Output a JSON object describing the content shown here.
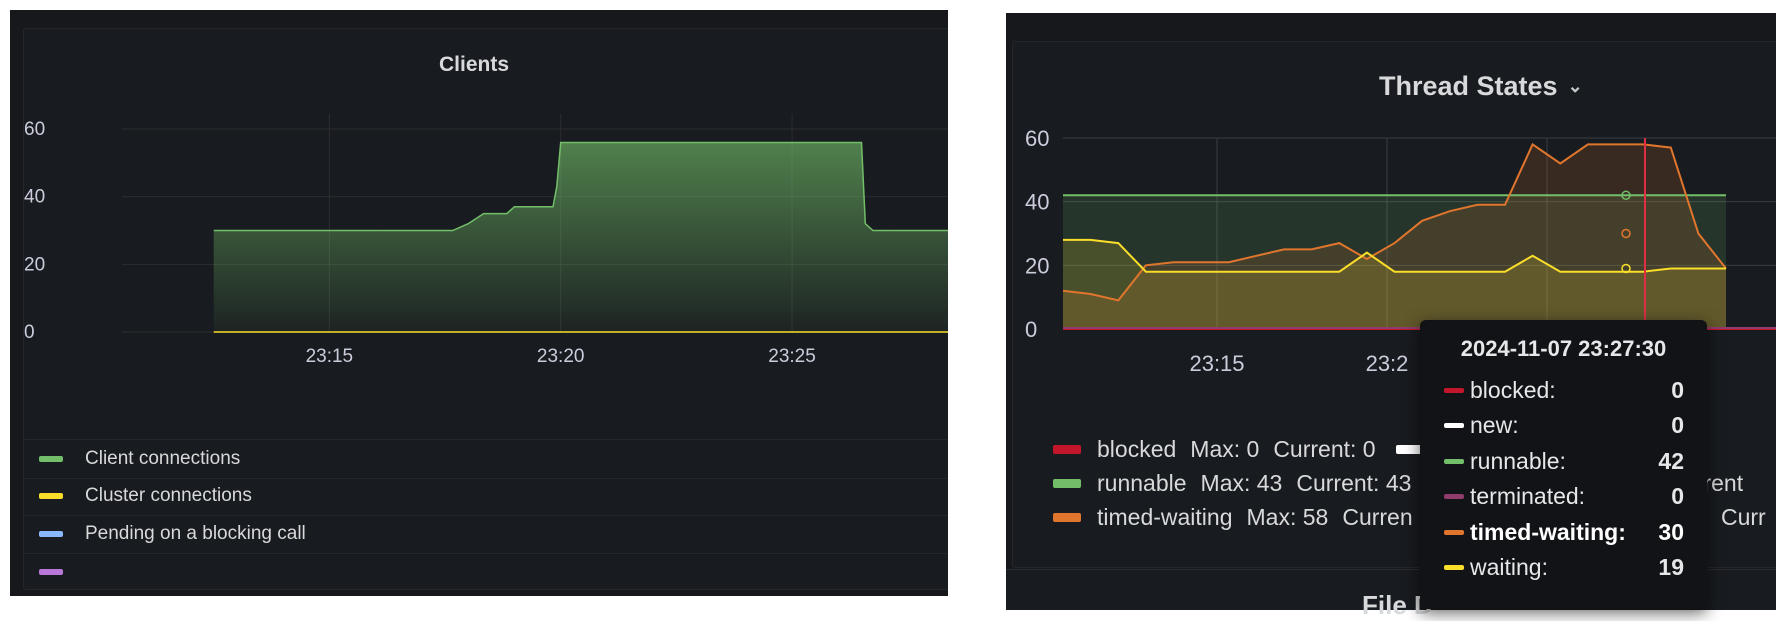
{
  "left_panel": {
    "title": "Clients",
    "chart_data": {
      "type": "area",
      "y_ticks": [
        "60",
        "40",
        "20",
        "0"
      ],
      "x_ticks": [
        "23:15",
        "23:20",
        "23:25"
      ],
      "ylim": [
        0,
        60
      ],
      "grid": true,
      "series": [
        {
          "name": "Client connections",
          "color": "#73bf69",
          "x": [
            "23:12:30",
            "23:17:40",
            "23:18:00",
            "23:18:20",
            "23:18:50",
            "23:19:00",
            "23:19:50",
            "23:19:55",
            "23:20:00",
            "23:26:30",
            "23:26:35",
            "23:26:45",
            "23:28:30"
          ],
          "values": [
            30,
            30,
            32,
            35,
            35,
            37,
            37,
            43,
            56,
            56,
            32,
            30,
            30
          ]
        },
        {
          "name": "Cluster connections",
          "color": "#fade2a",
          "x": [
            "23:12:30",
            "23:28:30"
          ],
          "values": [
            0,
            0
          ]
        }
      ]
    },
    "legend": [
      {
        "label": "Client connections",
        "color": "#73bf69"
      },
      {
        "label": "Cluster connections",
        "color": "#fade2a"
      },
      {
        "label": "Pending on a blocking call",
        "color": "#8ab8ff"
      },
      {
        "label": "",
        "color": "#b877d9"
      }
    ]
  },
  "right_panel": {
    "title": "Thread States",
    "chevron": "chevron-down-icon",
    "chart_data": {
      "type": "line",
      "y_ticks": [
        "60",
        "40",
        "20",
        "0"
      ],
      "x_ticks": [
        "23:15",
        "23:2"
      ],
      "ylim": [
        0,
        60
      ],
      "grid": true,
      "series": [
        {
          "name": "runnable",
          "color": "#73bf69",
          "values": [
            42,
            42,
            42,
            42,
            42,
            42,
            42,
            42,
            42,
            42,
            42,
            42,
            42,
            42,
            42,
            42,
            42,
            42,
            42,
            42,
            42,
            42,
            42,
            42
          ]
        },
        {
          "name": "timed-waiting",
          "color": "#e0752d",
          "values": [
            12,
            11,
            9,
            20,
            21,
            21,
            21,
            23,
            25,
            25,
            27,
            22,
            27,
            34,
            37,
            39,
            39,
            58,
            52,
            58,
            58,
            58,
            57,
            30,
            19
          ]
        },
        {
          "name": "waiting",
          "color": "#fade2a",
          "values": [
            28,
            28,
            27,
            18,
            18,
            18,
            18,
            18,
            18,
            18,
            18,
            24,
            18,
            18,
            18,
            18,
            18,
            23,
            18,
            18,
            18,
            18,
            19,
            19,
            19
          ]
        },
        {
          "name": "blocked",
          "color": "#c4162a",
          "values": [
            0,
            0
          ]
        },
        {
          "name": "terminated",
          "color": "#8f3b6b",
          "values": [
            0,
            0
          ]
        }
      ]
    },
    "legend": [
      {
        "name": "blocked",
        "max": "Max: 0",
        "current": "Current: 0",
        "color": "#c4162a"
      },
      {
        "name": "runnable",
        "max": "Max: 43",
        "current": "Current: 43",
        "color": "#73bf69",
        "trail": "urrent"
      },
      {
        "name": "timed-waiting",
        "max": "Max: 58",
        "current": "Curren",
        "color": "#e0752d",
        "trail": "Curr"
      }
    ],
    "tooltip": {
      "time": "2024-11-07 23:27:30",
      "rows": [
        {
          "label": "blocked:",
          "value": "0",
          "color": "#c4162a"
        },
        {
          "label": "new:",
          "value": "0",
          "color": "#ffffff"
        },
        {
          "label": "runnable:",
          "value": "42",
          "color": "#73bf69"
        },
        {
          "label": "terminated:",
          "value": "0",
          "color": "#8f3b6b"
        },
        {
          "label": "timed-waiting:",
          "value": "30",
          "color": "#e0752d",
          "highlight": true
        },
        {
          "label": "waiting:",
          "value": "19",
          "color": "#fade2a"
        }
      ]
    }
  },
  "next_panel": {
    "title": "File D"
  }
}
